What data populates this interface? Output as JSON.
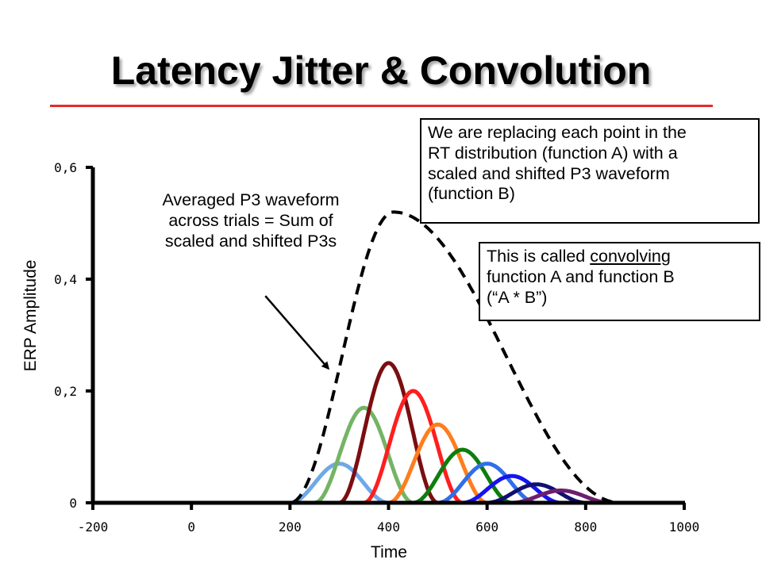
{
  "title": "Latency Jitter & Convolution",
  "annotations": {
    "average_label": [
      "Averaged P3 waveform",
      "across trials = Sum of",
      "scaled and shifted P3s"
    ],
    "box_a": [
      "We are replacing each point in the",
      "RT distribution (function A) with a",
      "scaled and shifted P3 waveform",
      "(function B)"
    ],
    "box_b": {
      "line1_prefix": "This is called ",
      "line1_underlined": "convolving",
      "line2": "function A and function B",
      "line3": "(“A * B”)"
    }
  },
  "colors": {
    "title_rule": "#e32b2b",
    "axis": "#000000"
  },
  "chart_data": {
    "type": "line",
    "xlabel": "Time",
    "ylabel": "ERP Amplitude",
    "xlim": [
      -200,
      1000
    ],
    "ylim": [
      0,
      0.6
    ],
    "x_ticks": [
      -200,
      0,
      200,
      400,
      600,
      800,
      1000
    ],
    "x_tick_labels": [
      "-200",
      "0",
      "200",
      "400",
      "600",
      "800",
      "1000"
    ],
    "y_ticks": [
      0,
      0.2,
      0.4,
      0.6
    ],
    "y_tick_labels": [
      "0",
      "0,2",
      "0,4",
      "0,6"
    ],
    "series": [
      {
        "color": "#6ea8e8",
        "peak_x": 300,
        "peak_y": 0.07,
        "start_x": 200,
        "end_x": 400
      },
      {
        "color": "#74b464",
        "peak_x": 350,
        "peak_y": 0.17,
        "start_x": 250,
        "end_x": 450
      },
      {
        "color": "#7b0e10",
        "peak_x": 400,
        "peak_y": 0.25,
        "start_x": 300,
        "end_x": 500
      },
      {
        "color": "#ff1e1e",
        "peak_x": 450,
        "peak_y": 0.2,
        "start_x": 350,
        "end_x": 550
      },
      {
        "color": "#ff7d1e",
        "peak_x": 500,
        "peak_y": 0.14,
        "start_x": 400,
        "end_x": 600
      },
      {
        "color": "#0d7d0d",
        "peak_x": 550,
        "peak_y": 0.095,
        "start_x": 450,
        "end_x": 650
      },
      {
        "color": "#2f6fe8",
        "peak_x": 600,
        "peak_y": 0.07,
        "start_x": 500,
        "end_x": 700
      },
      {
        "color": "#1414ee",
        "peak_x": 650,
        "peak_y": 0.048,
        "start_x": 550,
        "end_x": 750
      },
      {
        "color": "#10106e",
        "peak_x": 700,
        "peak_y": 0.033,
        "start_x": 600,
        "end_x": 800
      },
      {
        "color": "#6e1e6e",
        "peak_x": 750,
        "peak_y": 0.022,
        "start_x": 650,
        "end_x": 850
      }
    ],
    "sum_curve": {
      "style": "dashed",
      "color": "#000000",
      "start_x": 200,
      "peak_x": 410,
      "peak_y": 0.52,
      "end_x": 870
    },
    "arrow": {
      "from": [
        150,
        0.37
      ],
      "to": [
        278,
        0.24
      ]
    }
  }
}
